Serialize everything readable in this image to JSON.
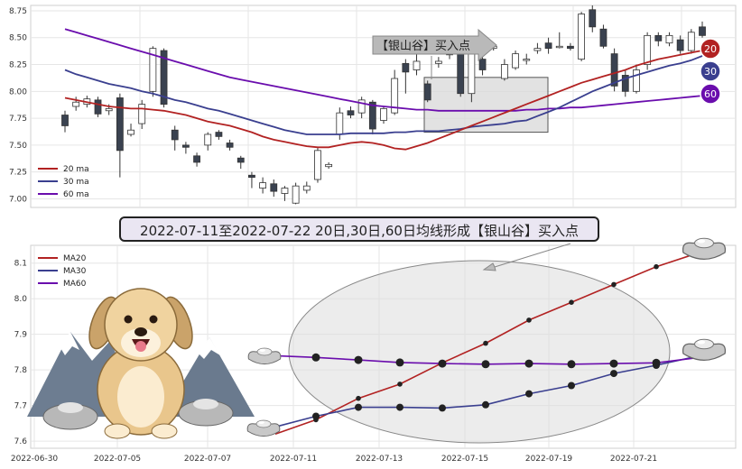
{
  "title": "2022-07-11至2022-07-22 20日,30日,60日均线形成【银山谷】买入点",
  "arrow_label": "【银山谷】买入点",
  "badges": {
    "b20": "20",
    "b30": "30",
    "b60": "60"
  },
  "colors": {
    "ma20": "#b22222",
    "ma30": "#3a3f8f",
    "ma60": "#6a0dad",
    "up": "#ffffff",
    "down": "#3a4250",
    "grid": "#e6e6e6"
  },
  "chart_data": [
    {
      "type": "candlestick",
      "ylim": [
        6.92,
        8.8
      ],
      "yticks": [
        "7.00",
        "7.25",
        "7.50",
        "7.75",
        "8.00",
        "8.25",
        "8.50",
        "8.75"
      ],
      "legend": [
        "20 ma",
        "30 ma",
        "60 ma"
      ],
      "candles": [
        [
          7.78,
          7.68,
          7.82,
          7.62
        ],
        [
          7.86,
          7.9,
          7.95,
          7.82
        ],
        [
          7.88,
          7.93,
          7.96,
          7.85
        ],
        [
          7.92,
          7.79,
          7.95,
          7.76
        ],
        [
          7.82,
          7.84,
          7.88,
          7.78
        ],
        [
          7.94,
          7.45,
          7.98,
          7.2
        ],
        [
          7.6,
          7.64,
          7.7,
          7.58
        ],
        [
          7.7,
          7.88,
          7.92,
          7.65
        ],
        [
          8.0,
          8.4,
          8.42,
          7.95
        ],
        [
          8.38,
          7.88,
          8.4,
          7.85
        ],
        [
          7.64,
          7.55,
          7.68,
          7.45
        ],
        [
          7.5,
          7.48,
          7.53,
          7.42
        ],
        [
          7.4,
          7.34,
          7.43,
          7.3
        ],
        [
          7.5,
          7.6,
          7.62,
          7.45
        ],
        [
          7.62,
          7.58,
          7.64,
          7.55
        ],
        [
          7.52,
          7.48,
          7.55,
          7.45
        ],
        [
          7.38,
          7.34,
          7.4,
          7.28
        ],
        [
          7.22,
          7.2,
          7.25,
          7.1
        ],
        [
          7.1,
          7.15,
          7.2,
          7.05
        ],
        [
          7.14,
          7.07,
          7.18,
          7.02
        ],
        [
          7.05,
          7.1,
          7.12,
          6.98
        ],
        [
          6.96,
          7.12,
          7.15,
          6.95
        ],
        [
          7.08,
          7.12,
          7.16,
          7.05
        ],
        [
          7.18,
          7.45,
          7.48,
          7.15
        ],
        [
          7.3,
          7.32,
          7.34,
          7.28
        ],
        [
          7.6,
          7.8,
          7.85,
          7.55
        ],
        [
          7.82,
          7.78,
          7.86,
          7.75
        ],
        [
          7.8,
          7.92,
          7.95,
          7.75
        ],
        [
          7.9,
          7.65,
          7.92,
          7.6
        ],
        [
          7.73,
          7.84,
          7.86,
          7.7
        ],
        [
          7.8,
          8.12,
          8.2,
          7.78
        ],
        [
          8.26,
          8.18,
          8.3,
          7.98
        ],
        [
          8.2,
          8.28,
          8.35,
          8.15
        ],
        [
          8.07,
          7.92,
          8.1,
          7.9
        ],
        [
          8.26,
          8.28,
          8.32,
          8.22
        ],
        [
          8.34,
          8.4,
          8.48,
          8.3
        ],
        [
          8.38,
          7.98,
          8.4,
          7.95
        ],
        [
          7.98,
          8.36,
          8.5,
          7.9
        ],
        [
          8.3,
          8.2,
          8.32,
          8.15
        ],
        [
          8.4,
          8.42,
          8.45,
          8.38
        ],
        [
          8.12,
          8.25,
          8.3,
          8.1
        ],
        [
          8.22,
          8.35,
          8.38,
          8.2
        ],
        [
          8.3,
          8.3,
          8.35,
          8.25
        ],
        [
          8.38,
          8.4,
          8.45,
          8.35
        ],
        [
          8.45,
          8.4,
          8.5,
          8.35
        ],
        [
          8.42,
          8.42,
          8.55,
          8.4
        ],
        [
          8.42,
          8.4,
          8.45,
          8.38
        ],
        [
          8.3,
          8.72,
          8.74,
          8.28
        ],
        [
          8.76,
          8.6,
          8.8,
          8.55
        ],
        [
          8.58,
          8.42,
          8.62,
          8.4
        ],
        [
          8.35,
          8.05,
          8.4,
          8.0
        ],
        [
          8.15,
          8.0,
          8.2,
          7.95
        ],
        [
          8.0,
          8.2,
          8.25,
          7.98
        ],
        [
          8.25,
          8.52,
          8.55,
          8.2
        ],
        [
          8.52,
          8.47,
          8.55,
          8.42
        ],
        [
          8.45,
          8.52,
          8.55,
          8.42
        ],
        [
          8.48,
          8.38,
          8.52,
          8.35
        ],
        [
          8.38,
          8.55,
          8.58,
          8.35
        ],
        [
          8.6,
          8.52,
          8.65,
          8.5
        ]
      ],
      "ma20": [
        7.94,
        7.92,
        7.9,
        7.88,
        7.86,
        7.85,
        7.84,
        7.84,
        7.83,
        7.82,
        7.8,
        7.78,
        7.75,
        7.72,
        7.7,
        7.68,
        7.65,
        7.62,
        7.58,
        7.55,
        7.53,
        7.51,
        7.49,
        7.48,
        7.48,
        7.5,
        7.52,
        7.53,
        7.52,
        7.5,
        7.47,
        7.46,
        7.49,
        7.52,
        7.56,
        7.6,
        7.64,
        7.68,
        7.72,
        7.76,
        7.8,
        7.84,
        7.88,
        7.92,
        7.96,
        8.0,
        8.04,
        8.08,
        8.11,
        8.14,
        8.17,
        8.2,
        8.24,
        8.27,
        8.3,
        8.32,
        8.34,
        8.36,
        8.38
      ],
      "ma30": [
        8.2,
        8.16,
        8.13,
        8.1,
        8.07,
        8.05,
        8.03,
        8.0,
        7.98,
        7.95,
        7.92,
        7.9,
        7.87,
        7.84,
        7.82,
        7.79,
        7.76,
        7.73,
        7.7,
        7.67,
        7.64,
        7.62,
        7.6,
        7.6,
        7.6,
        7.6,
        7.61,
        7.61,
        7.61,
        7.61,
        7.62,
        7.62,
        7.63,
        7.63,
        7.63,
        7.64,
        7.65,
        7.67,
        7.68,
        7.69,
        7.7,
        7.72,
        7.73,
        7.77,
        7.81,
        7.85,
        7.9,
        7.95,
        8.0,
        8.04,
        8.08,
        8.12,
        8.15,
        8.18,
        8.21,
        8.24,
        8.26,
        8.29,
        8.33
      ],
      "ma60": [
        8.58,
        8.55,
        8.52,
        8.49,
        8.46,
        8.43,
        8.4,
        8.37,
        8.34,
        8.31,
        8.28,
        8.25,
        8.22,
        8.19,
        8.16,
        8.13,
        8.11,
        8.09,
        8.07,
        8.05,
        8.03,
        8.01,
        7.99,
        7.97,
        7.95,
        7.93,
        7.91,
        7.89,
        7.87,
        7.86,
        7.85,
        7.84,
        7.83,
        7.83,
        7.82,
        7.82,
        7.82,
        7.82,
        7.82,
        7.82,
        7.82,
        7.82,
        7.83,
        7.83,
        7.84,
        7.84,
        7.85,
        7.85,
        7.86,
        7.87,
        7.88,
        7.89,
        7.9,
        7.91,
        7.92,
        7.93,
        7.94,
        7.95,
        7.96
      ]
    },
    {
      "type": "line",
      "ylim": [
        7.58,
        8.15
      ],
      "yticks": [
        "7.6",
        "7.7",
        "7.8",
        "7.9",
        "8.0",
        "8.1"
      ],
      "xticks": [
        "2022-06-30",
        "2022-07-05",
        "2022-07-07",
        "2022-07-11",
        "2022-07-13",
        "2022-07-15",
        "2022-07-19",
        "2022-07-21"
      ],
      "legend": [
        "MA20",
        "MA30",
        "MA60"
      ],
      "x": [
        "2022-07-08",
        "2022-07-11",
        "2022-07-12",
        "2022-07-13",
        "2022-07-14",
        "2022-07-15",
        "2022-07-18",
        "2022-07-19",
        "2022-07-20",
        "2022-07-21",
        "2022-07-22"
      ],
      "series": [
        {
          "name": "MA20",
          "values": [
            7.62,
            7.66,
            7.72,
            7.76,
            7.82,
            7.875,
            7.94,
            7.99,
            8.04,
            8.09,
            8.13
          ]
        },
        {
          "name": "MA30",
          "values": [
            7.64,
            7.67,
            7.695,
            7.695,
            7.693,
            7.702,
            7.733,
            7.756,
            7.79,
            7.813,
            7.84
          ]
        },
        {
          "name": "MA60",
          "values": [
            7.84,
            7.835,
            7.828,
            7.821,
            7.818,
            7.816,
            7.818,
            7.816,
            7.818,
            7.82,
            7.835
          ]
        }
      ]
    }
  ]
}
